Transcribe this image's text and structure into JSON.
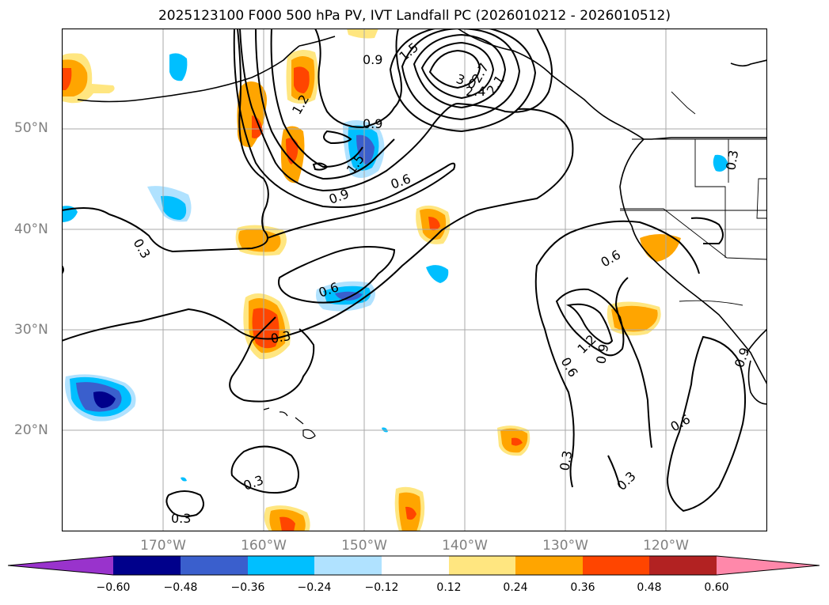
{
  "title": "2025123100 F000 500 hPa PV, IVT Landfall PC (2026010212 - 2026010512)",
  "lat_labels": [
    "50°N",
    "40°N",
    "30°N",
    "20°N"
  ],
  "lon_labels": [
    "170°W",
    "160°W",
    "150°W",
    "140°W",
    "130°W",
    "120°W"
  ],
  "colorbar": {
    "ticks": [
      "−0.60",
      "−0.48",
      "−0.36",
      "−0.24",
      "−0.12",
      "0.12",
      "0.24",
      "0.36",
      "0.48",
      "0.60"
    ],
    "colors": [
      "#9933cc",
      "#00008b",
      "#3a5fcd",
      "#00bfff",
      "#b0e2ff",
      "#ffffff",
      "#ffe680",
      "#ffa500",
      "#ff4500",
      "#b22222",
      "#ff88aa"
    ]
  },
  "contour_labels": {
    "c1": "0.9",
    "c2": "1.5",
    "c3": "3.0",
    "c4": "2.7",
    "c5": "2.4",
    "c6": "2.1",
    "c7": "1.2",
    "c8": "0.9",
    "c9": "1.5",
    "c10": "0.9",
    "c11": "0.6",
    "c12": "0.3",
    "c13": "0.6",
    "c14": "0.3",
    "c15": "0.6",
    "c16": "1.2",
    "c17": "0.9",
    "c18": "0.6",
    "c19": "0.3",
    "c20": "0.6",
    "c21": "0.3",
    "c22": "0.3",
    "c23": "0.3",
    "c24": "0.3",
    "c25": "0.9"
  },
  "colors": {
    "contour": "#000000",
    "grid": "#aaaaaa",
    "axis_label": "#808080"
  }
}
